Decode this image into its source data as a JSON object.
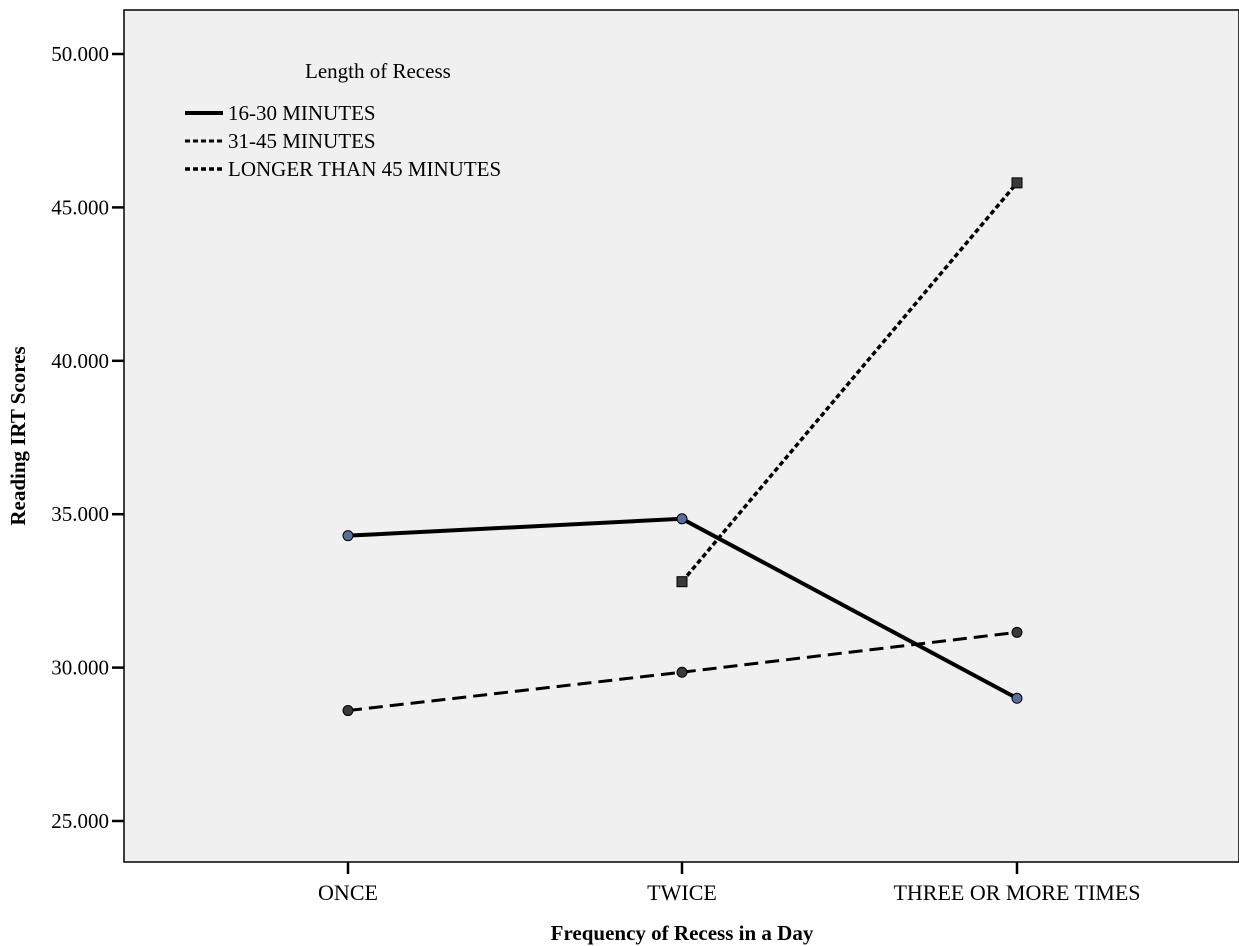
{
  "chart_data": {
    "type": "line",
    "title": "",
    "xlabel": "Frequency of Recess in a Day",
    "ylabel": "Reading IRT Scores",
    "categories": [
      "ONCE",
      "TWICE",
      "THREE OR MORE TIMES"
    ],
    "ylim": [
      25,
      50
    ],
    "yticks": [
      25,
      30,
      35,
      40,
      45,
      50
    ],
    "ytick_labels": [
      "25.000",
      "30.000",
      "35.000",
      "40.000",
      "45.000",
      "50.000"
    ],
    "grid": false,
    "legend": {
      "title": "Length of Recess",
      "placement": "top-left"
    },
    "series": [
      {
        "name": "16-30 MINUTES",
        "values": [
          34.3,
          34.85,
          29.0
        ],
        "line_style": "solid",
        "marker": "circle",
        "marker_color": "#5a6e9c"
      },
      {
        "name": "31-45 MINUTES",
        "values": [
          28.6,
          29.85,
          31.15
        ],
        "line_style": "dashed",
        "marker": "circle",
        "marker_color": "#3a3a3a"
      },
      {
        "name": "LONGER THAN 45 MINUTES",
        "values": [
          null,
          32.8,
          45.8
        ],
        "line_style": "dotted",
        "marker": "square",
        "marker_color": "#3a3a3a"
      }
    ],
    "colors": {
      "plot_background": "#f0f0f0",
      "line": "#000000"
    }
  }
}
